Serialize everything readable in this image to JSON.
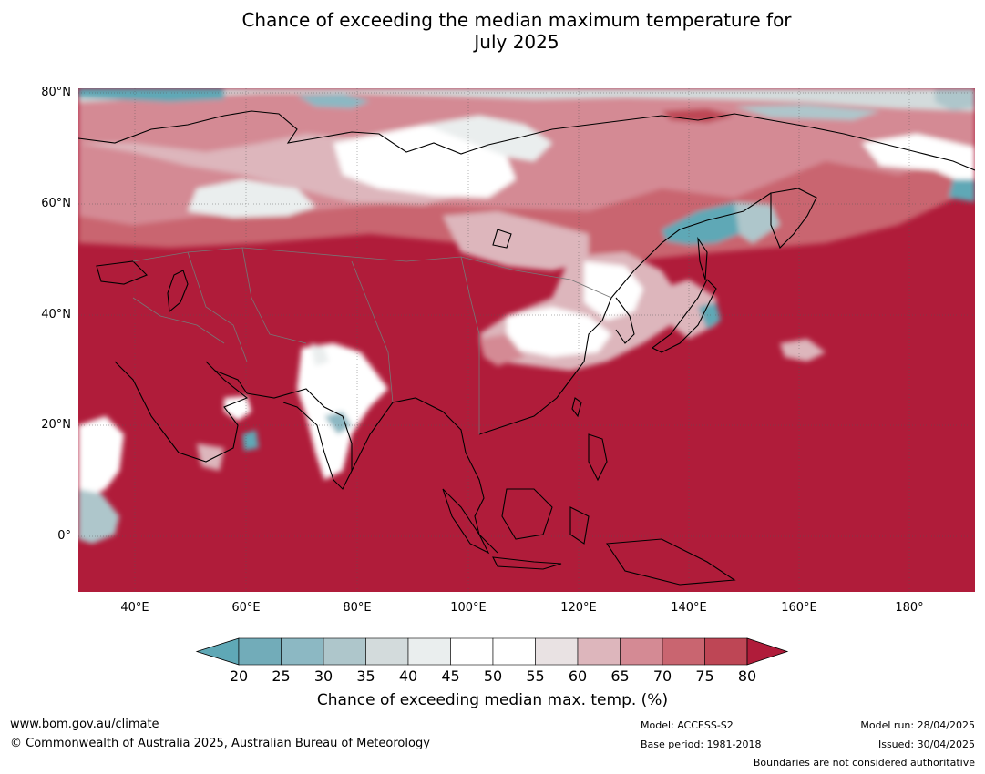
{
  "title_line1": "Chance of exceeding the median maximum temperature for",
  "title_line2": "July 2025",
  "map": {
    "lat_labels": [
      "80°N",
      "60°N",
      "40°N",
      "20°N",
      "0°"
    ],
    "lon_labels": [
      "40°E",
      "60°E",
      "80°E",
      "100°E",
      "120°E",
      "140°E",
      "160°E",
      "180°"
    ]
  },
  "colorbar": {
    "ticks": [
      "20",
      "25",
      "30",
      "35",
      "40",
      "45",
      "50",
      "55",
      "60",
      "65",
      "70",
      "75",
      "80"
    ],
    "colors": [
      "#5fa8b6",
      "#72acb9",
      "#8cb8c3",
      "#aec6cb",
      "#d3dbdc",
      "#eaeeee",
      "#ffffff",
      "#ffffff",
      "#e9e2e3",
      "#ddb6bc",
      "#d48a94",
      "#c96570",
      "#be4655",
      "#b01c3a"
    ],
    "title": "Chance of exceeding median max. temp. (%)"
  },
  "footer": {
    "url": "www.bom.gov.au/climate",
    "copyright": "© Commonwealth of Australia 2025, Australian Bureau of Meteorology",
    "model": "Model: ACCESS-S2",
    "base_period": "Base period: 1981-2018",
    "model_run": "Model run: 28/04/2025",
    "issued": "Issued: 30/04/2025",
    "disclaimer": "Boundaries are not considered authoritative"
  }
}
